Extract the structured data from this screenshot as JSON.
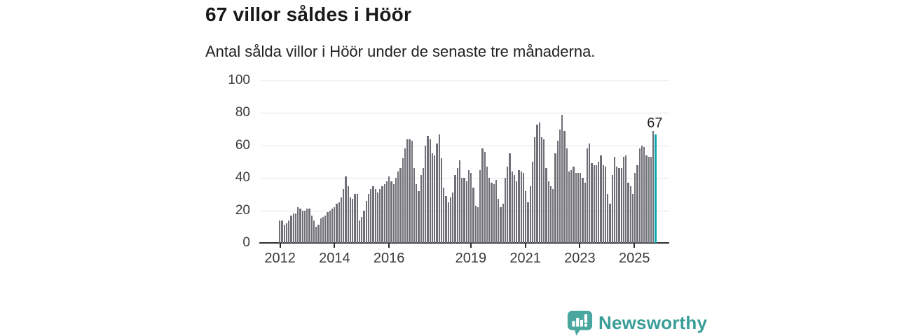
{
  "header": {
    "title": "67 villor såldes i Höör",
    "subtitle": "Antal sålda villor i Höör under de senaste tre månaderna."
  },
  "chart_data": {
    "type": "bar",
    "title": "67 villor såldes i Höör",
    "subtitle": "Antal sålda villor i Höör under de senaste tre månaderna.",
    "x_unit": "month",
    "x_start": "2012-01",
    "x_end": "2025-10",
    "ylim": [
      0,
      100
    ],
    "y_ticks": [
      0,
      20,
      40,
      60,
      80,
      100
    ],
    "x_ticks": [
      {
        "label": "2012",
        "month_index": 0
      },
      {
        "label": "2014",
        "month_index": 24
      },
      {
        "label": "2016",
        "month_index": 48
      },
      {
        "label": "2019",
        "month_index": 84
      },
      {
        "label": "2021",
        "month_index": 108
      },
      {
        "label": "2023",
        "month_index": 132
      },
      {
        "label": "2025",
        "month_index": 156
      }
    ],
    "grid": true,
    "values": [
      14,
      14,
      11,
      12,
      14,
      17,
      18,
      18,
      22,
      21,
      20,
      20,
      21,
      21,
      17,
      14,
      10,
      11,
      15,
      16,
      17,
      19,
      20,
      21,
      22,
      24,
      25,
      28,
      33,
      41,
      35,
      28,
      27,
      30,
      30,
      14,
      16,
      20,
      26,
      30,
      33,
      35,
      33,
      31,
      33,
      35,
      36,
      38,
      41,
      38,
      36,
      40,
      44,
      46,
      52,
      58,
      64,
      64,
      63,
      46,
      36,
      32,
      42,
      46,
      60,
      66,
      64,
      55,
      54,
      61,
      67,
      52,
      34,
      29,
      25,
      28,
      31,
      42,
      46,
      51,
      40,
      40,
      38,
      45,
      43,
      34,
      23,
      22,
      45,
      58,
      56,
      47,
      40,
      37,
      36,
      39,
      27,
      22,
      24,
      40,
      47,
      55,
      44,
      42,
      38,
      45,
      44,
      43,
      32,
      25,
      35,
      50,
      65,
      73,
      74,
      65,
      64,
      46,
      38,
      35,
      33,
      55,
      63,
      70,
      79,
      69,
      58,
      44,
      45,
      47,
      43,
      43,
      43,
      40,
      37,
      58,
      61,
      49,
      48,
      48,
      50,
      54,
      48,
      47,
      30,
      24,
      42,
      53,
      47,
      46,
      46,
      53,
      54,
      37,
      35,
      30,
      43,
      48,
      58,
      60,
      59,
      54,
      53,
      53,
      69,
      67
    ],
    "highlight_last": true,
    "highlight_value_label": "67",
    "bar_color": "#6f6f77",
    "highlight_color": "#0ea7ad",
    "grid_color": "#e4e4e4",
    "axis_color": "#2f2f2f",
    "label_color": "#3a3a3a"
  },
  "footer": {
    "brand": "Newsworthy",
    "logo_icon": "newsworthy-speech-bubble-chart-icon",
    "brand_color": "#3a9d97",
    "icon_color": "#4aa79f"
  }
}
